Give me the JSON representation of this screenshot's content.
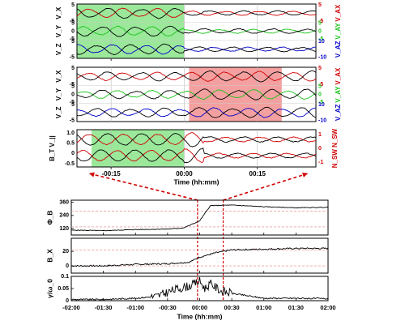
{
  "chart_data": [
    {
      "type": "line",
      "panel": "top-panel-1",
      "xlim": [
        -22,
        27
      ],
      "xticks": [
        "-00:15",
        "00:00",
        "00:15"
      ],
      "highlight": {
        "start": -22,
        "end": 0,
        "color": "#9be89b"
      },
      "rows": [
        {
          "left_label": "V_X",
          "right_label": "V_AX",
          "left_ticks": [
            "5",
            "-5"
          ],
          "right_ticks": [
            "5",
            "-5"
          ],
          "right_color": "#d10000"
        },
        {
          "left_label": "V_Y",
          "right_label": "V_AY",
          "left_ticks": [
            "5",
            "0",
            "-5"
          ],
          "right_ticks": [
            "5",
            "0",
            "-5"
          ],
          "right_color": "#18c418"
        },
        {
          "left_label": "V_Z",
          "right_label": "V_AZ",
          "left_ticks": [
            "5",
            "-5"
          ],
          "right_ticks": [
            "10",
            "-10"
          ],
          "right_color": "#0000c8"
        }
      ],
      "series": [
        {
          "name": "V",
          "color": "#000000"
        },
        {
          "name": "V_A",
          "colors": [
            "#d10000",
            "#18c418",
            "#0000c8"
          ]
        }
      ]
    },
    {
      "type": "line",
      "panel": "top-panel-2",
      "xlim": [
        -22,
        27
      ],
      "highlight": {
        "start": 1,
        "end": 20,
        "color": "#f4a0a0"
      },
      "rows": [
        {
          "left_label": "V_X",
          "right_label": "V_AX",
          "left_ticks": [
            "5",
            "-5"
          ],
          "right_ticks": [
            "5",
            "-5"
          ],
          "right_color": "#d10000"
        },
        {
          "left_label": "V_Y",
          "right_label": "V_AY",
          "left_ticks": [
            "5",
            "0",
            "-5"
          ],
          "right_ticks": [
            "5",
            "0",
            "-5"
          ],
          "right_color": "#18c418"
        },
        {
          "left_label": "V_Z",
          "right_label": "V_AZ",
          "left_ticks": [
            "5",
            "-5"
          ],
          "right_ticks": [
            "10",
            "-10"
          ],
          "right_color": "#0000c8"
        }
      ]
    },
    {
      "type": "line",
      "panel": "top-panel-3",
      "xlim": [
        -22,
        27
      ],
      "xlabel": "Time (hh:mm)",
      "xticks": [
        "-00:15",
        "00:00",
        "00:15"
      ],
      "highlight": {
        "start": -19,
        "end": 0,
        "color": "#9be89b"
      },
      "left_label": "B_T V_||",
      "right_label": "N_SW N_SW",
      "left_ticks": [
        "1.0",
        "0.5",
        "0",
        "-0.5"
      ],
      "right_ticks": [
        "1",
        "0",
        "-1"
      ]
    },
    {
      "type": "line",
      "panel": "bottom-phi",
      "ylabel": "Φ_B",
      "ylim": [
        60,
        380
      ],
      "yticks": [
        "360",
        "240",
        "120"
      ],
      "xlim": [
        -120,
        120
      ],
      "series": [
        {
          "x": [
            -120,
            -90,
            -60,
            -30,
            -15,
            0,
            10,
            30,
            60,
            90,
            120
          ],
          "y": [
            105,
            100,
            110,
            115,
            125,
            190,
            330,
            335,
            320,
            310,
            315
          ]
        }
      ],
      "reference_levels": [
        {
          "y": 280
        },
        {
          "y": 135
        }
      ]
    },
    {
      "type": "line",
      "panel": "bottom-bx",
      "ylabel": "B_X",
      "ylim": [
        -10,
        38
      ],
      "yticks": [
        "20",
        "0"
      ],
      "xlim": [
        -120,
        120
      ],
      "series": [
        {
          "x": [
            -120,
            -90,
            -60,
            -30,
            -10,
            0,
            15,
            30,
            60,
            90,
            120
          ],
          "y": [
            0,
            0,
            2,
            3,
            5,
            12,
            18,
            22,
            23,
            24,
            24
          ]
        }
      ],
      "reference_levels": [
        {
          "y": 22
        },
        {
          "y": 0
        }
      ]
    },
    {
      "type": "line",
      "panel": "bottom-growth",
      "ylabel": "γ/ω_0",
      "ylim": [
        0,
        0.1
      ],
      "yticks": [
        "0.1",
        "0.05",
        "0"
      ],
      "xlim": [
        -120,
        120
      ],
      "xlabel": "Time (hh:mm)",
      "xticks": [
        "-02:00",
        "-01:30",
        "-01:00",
        "-00:30",
        "00:00",
        "00:30",
        "01:00",
        "01:30",
        "02:00"
      ],
      "series": [
        {
          "x": [
            -120,
            -90,
            -60,
            -40,
            -30,
            -20,
            -10,
            -5,
            0,
            5,
            10,
            20,
            30,
            45,
            60,
            90,
            120
          ],
          "y": [
            0.005,
            0.005,
            0.01,
            0.018,
            0.035,
            0.05,
            0.06,
            0.07,
            0.08,
            0.05,
            0.07,
            0.04,
            0.03,
            0.02,
            0.01,
            0.01,
            0.008
          ]
        }
      ]
    }
  ]
}
